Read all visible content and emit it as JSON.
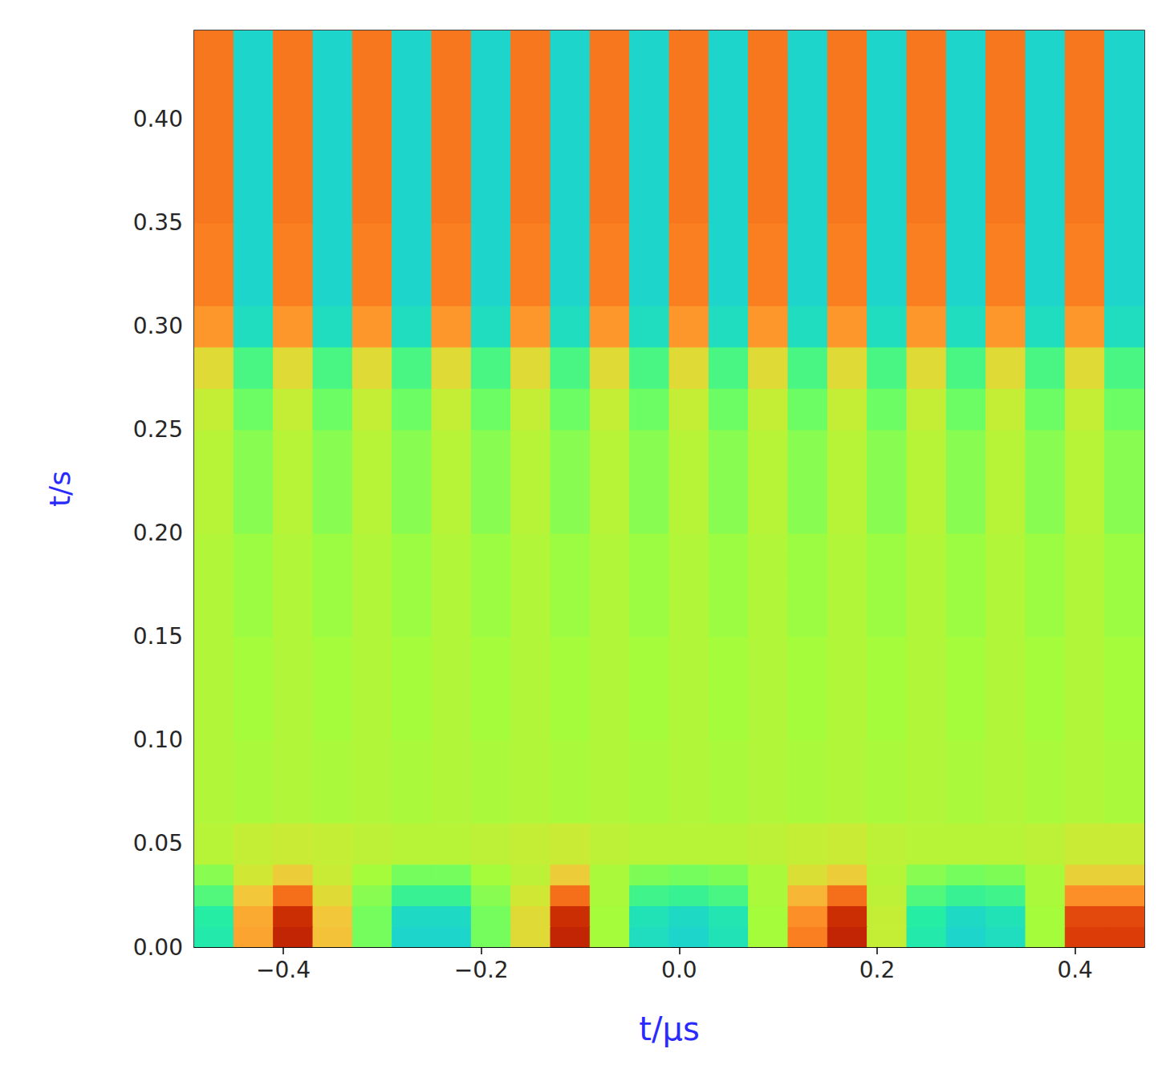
{
  "chart_data": {
    "type": "heatmap",
    "x_label": "t/μs",
    "y_label": "t/s",
    "xlim": [
      -0.49,
      0.47
    ],
    "ylim": [
      0,
      0.443
    ],
    "xticks": [
      {
        "value": -0.4,
        "label": "−0.4"
      },
      {
        "value": -0.2,
        "label": "−0.2"
      },
      {
        "value": 0,
        "label": "0.0"
      },
      0.2,
      0.4
    ],
    "yticks": [
      {
        "value": 0,
        "label": "0.00"
      },
      {
        "value": 0.05,
        "label": "0.05"
      },
      {
        "value": 0.1,
        "label": "0.10"
      },
      {
        "value": 0.15,
        "label": "0.15"
      },
      {
        "value": 0.2,
        "label": "0.20"
      },
      {
        "value": 0.25,
        "label": "0.25"
      },
      {
        "value": 0.3,
        "label": "0.30"
      },
      {
        "value": 0.35,
        "label": "0.35"
      },
      {
        "value": 0.4,
        "label": "0.40"
      }
    ],
    "x_bins": [
      -0.49,
      -0.45,
      -0.41,
      -0.37,
      -0.33,
      -0.29,
      -0.25,
      -0.21,
      -0.17,
      -0.13,
      -0.09,
      -0.05,
      -0.01,
      0.03,
      0.07,
      0.11,
      0.15,
      0.19,
      0.23,
      0.27,
      0.31,
      0.35,
      0.39,
      0.43,
      0.47
    ],
    "y_bins": [
      0,
      0.01,
      0.02,
      0.03,
      0.04,
      0.06,
      0.1,
      0.15,
      0.2,
      0.25,
      0.27,
      0.29,
      0.31,
      0.35,
      0.4,
      0.443
    ],
    "zlim": [
      0,
      1
    ],
    "cells": [
      [
        0.35,
        0.7,
        0.9,
        0.65,
        0.45,
        0.3,
        0.3,
        0.45,
        0.6,
        0.9,
        0.5,
        0.32,
        0.3,
        0.33,
        0.5,
        0.75,
        0.9,
        0.55,
        0.35,
        0.3,
        0.32,
        0.5,
        0.85,
        0.85
      ],
      [
        0.36,
        0.69,
        0.88,
        0.64,
        0.45,
        0.31,
        0.31,
        0.45,
        0.6,
        0.88,
        0.5,
        0.33,
        0.31,
        0.34,
        0.5,
        0.73,
        0.88,
        0.55,
        0.36,
        0.31,
        0.33,
        0.5,
        0.83,
        0.83
      ],
      [
        0.41,
        0.64,
        0.77,
        0.6,
        0.47,
        0.38,
        0.38,
        0.47,
        0.57,
        0.77,
        0.51,
        0.39,
        0.38,
        0.4,
        0.51,
        0.67,
        0.77,
        0.54,
        0.41,
        0.38,
        0.39,
        0.51,
        0.73,
        0.73
      ],
      [
        0.47,
        0.57,
        0.63,
        0.56,
        0.5,
        0.45,
        0.45,
        0.5,
        0.54,
        0.63,
        0.51,
        0.46,
        0.45,
        0.46,
        0.51,
        0.59,
        0.63,
        0.53,
        0.47,
        0.45,
        0.46,
        0.51,
        0.62,
        0.62
      ],
      [
        0.53,
        0.55,
        0.56,
        0.55,
        0.54,
        0.53,
        0.53,
        0.54,
        0.55,
        0.56,
        0.54,
        0.53,
        0.53,
        0.53,
        0.54,
        0.55,
        0.56,
        0.54,
        0.53,
        0.53,
        0.53,
        0.54,
        0.56,
        0.56
      ],
      [
        0.52,
        0.51,
        0.52,
        0.51,
        0.52,
        0.51,
        0.52,
        0.51,
        0.52,
        0.51,
        0.52,
        0.51,
        0.52,
        0.51,
        0.52,
        0.51,
        0.52,
        0.51,
        0.52,
        0.51,
        0.52,
        0.51,
        0.52,
        0.51
      ],
      [
        0.52,
        0.5,
        0.52,
        0.5,
        0.52,
        0.5,
        0.52,
        0.5,
        0.52,
        0.5,
        0.52,
        0.5,
        0.52,
        0.5,
        0.52,
        0.5,
        0.52,
        0.5,
        0.52,
        0.5,
        0.52,
        0.5,
        0.52,
        0.5
      ],
      [
        0.52,
        0.49,
        0.52,
        0.49,
        0.52,
        0.49,
        0.52,
        0.49,
        0.52,
        0.49,
        0.52,
        0.49,
        0.52,
        0.49,
        0.52,
        0.49,
        0.52,
        0.49,
        0.52,
        0.49,
        0.52,
        0.49,
        0.52,
        0.49
      ],
      [
        0.53,
        0.47,
        0.53,
        0.47,
        0.53,
        0.47,
        0.53,
        0.47,
        0.53,
        0.47,
        0.53,
        0.47,
        0.53,
        0.47,
        0.53,
        0.47,
        0.53,
        0.47,
        0.53,
        0.47,
        0.53,
        0.47,
        0.53,
        0.47
      ],
      [
        0.55,
        0.44,
        0.55,
        0.44,
        0.55,
        0.44,
        0.55,
        0.44,
        0.55,
        0.44,
        0.55,
        0.44,
        0.55,
        0.44,
        0.55,
        0.44,
        0.55,
        0.44,
        0.55,
        0.44,
        0.55,
        0.44,
        0.55,
        0.44
      ],
      [
        0.6,
        0.4,
        0.6,
        0.4,
        0.6,
        0.4,
        0.6,
        0.4,
        0.6,
        0.4,
        0.6,
        0.4,
        0.6,
        0.4,
        0.6,
        0.4,
        0.6,
        0.4,
        0.6,
        0.4,
        0.6,
        0.4,
        0.6,
        0.4
      ],
      [
        0.72,
        0.32,
        0.72,
        0.32,
        0.72,
        0.32,
        0.72,
        0.32,
        0.72,
        0.32,
        0.72,
        0.32,
        0.72,
        0.32,
        0.72,
        0.32,
        0.72,
        0.32,
        0.72,
        0.32,
        0.72,
        0.32,
        0.72,
        0.32
      ],
      [
        0.75,
        0.3,
        0.75,
        0.3,
        0.75,
        0.3,
        0.75,
        0.3,
        0.75,
        0.3,
        0.75,
        0.3,
        0.75,
        0.3,
        0.75,
        0.3,
        0.75,
        0.3,
        0.75,
        0.3,
        0.75,
        0.3,
        0.75,
        0.3
      ],
      [
        0.76,
        0.3,
        0.76,
        0.3,
        0.76,
        0.3,
        0.76,
        0.3,
        0.76,
        0.3,
        0.76,
        0.3,
        0.76,
        0.3,
        0.76,
        0.3,
        0.76,
        0.3,
        0.76,
        0.3,
        0.76,
        0.3,
        0.76,
        0.3
      ],
      [
        0.76,
        0.3,
        0.76,
        0.3,
        0.76,
        0.3,
        0.76,
        0.3,
        0.76,
        0.3,
        0.76,
        0.3,
        0.76,
        0.3,
        0.76,
        0.3,
        0.76,
        0.3,
        0.76,
        0.3,
        0.76,
        0.3,
        0.76,
        0.3
      ]
    ]
  }
}
